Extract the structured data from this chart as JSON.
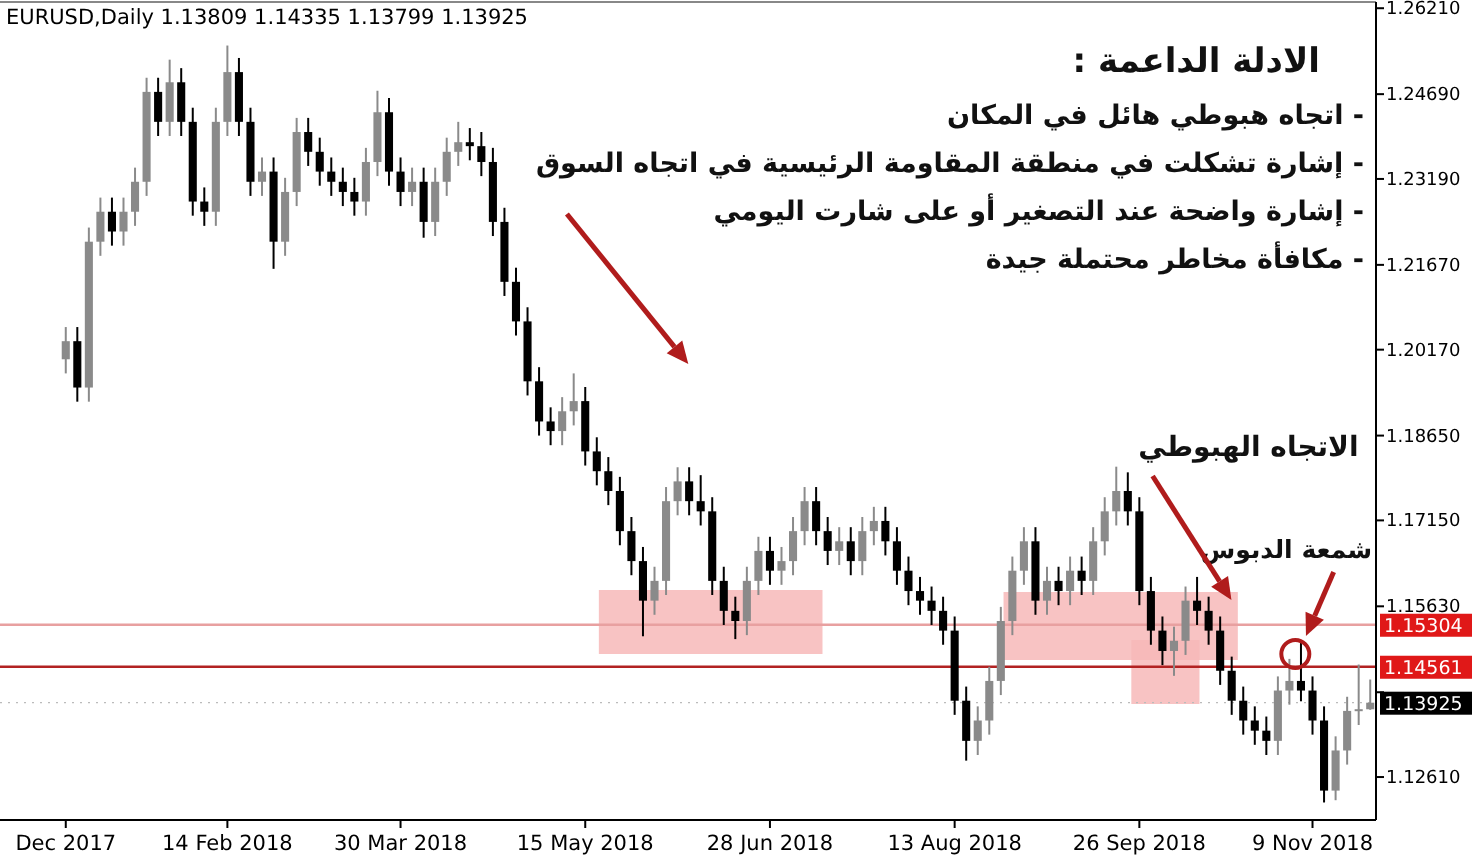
{
  "chart_data": {
    "type": "candlestick",
    "title": "EURUSD,Daily  1.13809 1.14335 1.13799 1.13925",
    "categories": [
      "Dec 2017",
      null,
      null,
      null,
      null,
      null,
      null,
      null,
      null,
      null,
      null,
      null,
      null,
      null,
      "14 Feb 2018",
      null,
      null,
      null,
      null,
      null,
      null,
      null,
      null,
      null,
      null,
      null,
      null,
      null,
      null,
      "30 Mar 2018",
      null,
      null,
      null,
      null,
      null,
      null,
      null,
      null,
      null,
      null,
      null,
      null,
      null,
      null,
      null,
      "15 May 2018",
      null,
      null,
      null,
      null,
      null,
      null,
      null,
      null,
      null,
      null,
      null,
      null,
      null,
      null,
      null,
      "28 Jun 2018",
      null,
      null,
      null,
      null,
      null,
      null,
      null,
      null,
      null,
      null,
      null,
      null,
      null,
      null,
      null,
      "13 Aug 2018",
      null,
      null,
      null,
      null,
      null,
      null,
      null,
      null,
      null,
      null,
      null,
      null,
      null,
      null,
      null,
      "26 Sep 2018",
      null,
      null,
      null,
      null,
      null,
      null,
      null,
      null,
      null,
      null,
      null,
      null,
      null,
      null,
      "9 Nov 2018",
      null,
      null,
      null,
      null,
      null
    ],
    "ohlc": [
      [
        1.2,
        1.2057,
        1.1975,
        1.2032
      ],
      [
        1.2032,
        1.2057,
        1.1925,
        1.195
      ],
      [
        1.195,
        1.2233,
        1.1925,
        1.2208
      ],
      [
        1.2208,
        1.2286,
        1.2183,
        1.2261
      ],
      [
        1.2261,
        1.2286,
        1.2201,
        1.2226
      ],
      [
        1.2226,
        1.2286,
        1.2201,
        1.2261
      ],
      [
        1.2261,
        1.2339,
        1.2236,
        1.2314
      ],
      [
        1.2314,
        1.2498,
        1.2289,
        1.2473
      ],
      [
        1.2473,
        1.2498,
        1.2395,
        1.242
      ],
      [
        1.242,
        1.253,
        1.2395,
        1.249
      ],
      [
        1.249,
        1.2515,
        1.2395,
        1.242
      ],
      [
        1.242,
        1.2445,
        1.2254,
        1.2279
      ],
      [
        1.2279,
        1.2304,
        1.2236,
        1.2261
      ],
      [
        1.2261,
        1.2445,
        1.2236,
        1.242
      ],
      [
        1.242,
        1.2555,
        1.2395,
        1.2508
      ],
      [
        1.2508,
        1.2533,
        1.2395,
        1.242
      ],
      [
        1.242,
        1.2445,
        1.2289,
        1.2314
      ],
      [
        1.2314,
        1.2357,
        1.2289,
        1.2332
      ],
      [
        1.2332,
        1.2357,
        1.216,
        1.2208
      ],
      [
        1.2208,
        1.2321,
        1.2183,
        1.2296
      ],
      [
        1.2296,
        1.2427,
        1.2271,
        1.2402
      ],
      [
        1.2402,
        1.2427,
        1.2342,
        1.2367
      ],
      [
        1.2367,
        1.2392,
        1.2307,
        1.2332
      ],
      [
        1.2332,
        1.2357,
        1.2289,
        1.2314
      ],
      [
        1.2314,
        1.2339,
        1.2271,
        1.2296
      ],
      [
        1.2296,
        1.2321,
        1.2254,
        1.2279
      ],
      [
        1.2279,
        1.2374,
        1.2254,
        1.2349
      ],
      [
        1.2349,
        1.2475,
        1.2324,
        1.2437
      ],
      [
        1.2437,
        1.2462,
        1.2307,
        1.2332
      ],
      [
        1.2332,
        1.2357,
        1.2271,
        1.2296
      ],
      [
        1.2296,
        1.2339,
        1.2271,
        1.2314
      ],
      [
        1.2314,
        1.2339,
        1.2215,
        1.2243
      ],
      [
        1.2243,
        1.2339,
        1.2218,
        1.2314
      ],
      [
        1.2314,
        1.2392,
        1.2289,
        1.2367
      ],
      [
        1.2367,
        1.242,
        1.2342,
        1.2384
      ],
      [
        1.2384,
        1.2409,
        1.2352,
        1.2377
      ],
      [
        1.2377,
        1.2402,
        1.2324,
        1.2349
      ],
      [
        1.2349,
        1.2374,
        1.2218,
        1.2243
      ],
      [
        1.2243,
        1.2268,
        1.2112,
        1.2137
      ],
      [
        1.2137,
        1.2162,
        1.2042,
        1.2067
      ],
      [
        1.2067,
        1.2092,
        1.1936,
        1.1961
      ],
      [
        1.1961,
        1.1986,
        1.1865,
        1.189
      ],
      [
        1.189,
        1.1915,
        1.1848,
        1.1873
      ],
      [
        1.1873,
        1.1933,
        1.1848,
        1.1908
      ],
      [
        1.1908,
        1.1975,
        1.1883,
        1.1926
      ],
      [
        1.1926,
        1.1951,
        1.1812,
        1.1837
      ],
      [
        1.1837,
        1.1862,
        1.1777,
        1.1802
      ],
      [
        1.1802,
        1.1827,
        1.1742,
        1.1767
      ],
      [
        1.1767,
        1.1792,
        1.1671,
        1.1696
      ],
      [
        1.1696,
        1.1721,
        1.1618,
        1.1643
      ],
      [
        1.1643,
        1.1668,
        1.151,
        1.1573
      ],
      [
        1.1573,
        1.1633,
        1.1548,
        1.1608
      ],
      [
        1.1608,
        1.1774,
        1.1583,
        1.1749
      ],
      [
        1.1749,
        1.1809,
        1.1724,
        1.1784
      ],
      [
        1.1784,
        1.1809,
        1.1724,
        1.1749
      ],
      [
        1.1749,
        1.1795,
        1.1706,
        1.1731
      ],
      [
        1.1731,
        1.1756,
        1.1583,
        1.1608
      ],
      [
        1.1608,
        1.1633,
        1.153,
        1.1555
      ],
      [
        1.1555,
        1.158,
        1.1505,
        1.1537
      ],
      [
        1.1537,
        1.1633,
        1.1512,
        1.1608
      ],
      [
        1.1608,
        1.1686,
        1.1583,
        1.1661
      ],
      [
        1.1661,
        1.1686,
        1.1601,
        1.1626
      ],
      [
        1.1626,
        1.1668,
        1.1601,
        1.1643
      ],
      [
        1.1643,
        1.1721,
        1.1618,
        1.1696
      ],
      [
        1.1696,
        1.1774,
        1.1671,
        1.1749
      ],
      [
        1.1749,
        1.1774,
        1.1671,
        1.1696
      ],
      [
        1.1696,
        1.1721,
        1.1636,
        1.1661
      ],
      [
        1.1661,
        1.1703,
        1.1636,
        1.1678
      ],
      [
        1.1678,
        1.1703,
        1.1618,
        1.1643
      ],
      [
        1.1643,
        1.1721,
        1.1618,
        1.1696
      ],
      [
        1.1696,
        1.1739,
        1.1671,
        1.1714
      ],
      [
        1.1714,
        1.1739,
        1.1653,
        1.1678
      ],
      [
        1.1678,
        1.1703,
        1.1601,
        1.1626
      ],
      [
        1.1626,
        1.1651,
        1.1565,
        1.159
      ],
      [
        1.159,
        1.1615,
        1.1548,
        1.1573
      ],
      [
        1.1573,
        1.1598,
        1.153,
        1.1555
      ],
      [
        1.1555,
        1.158,
        1.1495,
        1.152
      ],
      [
        1.152,
        1.1545,
        1.1371,
        1.1396
      ],
      [
        1.1396,
        1.1421,
        1.129,
        1.1325
      ],
      [
        1.1325,
        1.1386,
        1.13,
        1.1361
      ],
      [
        1.1361,
        1.1456,
        1.1336,
        1.1431
      ],
      [
        1.1431,
        1.1562,
        1.1406,
        1.1537
      ],
      [
        1.1537,
        1.1651,
        1.1512,
        1.1626
      ],
      [
        1.1626,
        1.1703,
        1.1601,
        1.1678
      ],
      [
        1.1678,
        1.1703,
        1.1548,
        1.1573
      ],
      [
        1.1573,
        1.1633,
        1.1548,
        1.1608
      ],
      [
        1.1608,
        1.1633,
        1.1565,
        1.159
      ],
      [
        1.159,
        1.1651,
        1.1565,
        1.1626
      ],
      [
        1.1626,
        1.1651,
        1.1583,
        1.1608
      ],
      [
        1.1608,
        1.1703,
        1.1583,
        1.1678
      ],
      [
        1.1678,
        1.1756,
        1.1653,
        1.1731
      ],
      [
        1.1731,
        1.181,
        1.1706,
        1.1767
      ],
      [
        1.1767,
        1.18,
        1.1706,
        1.1731
      ],
      [
        1.1731,
        1.1756,
        1.1565,
        1.159
      ],
      [
        1.159,
        1.1615,
        1.1495,
        1.152
      ],
      [
        1.152,
        1.1545,
        1.1459,
        1.1484
      ],
      [
        1.1484,
        1.1527,
        1.144,
        1.1502
      ],
      [
        1.1502,
        1.1598,
        1.1477,
        1.1573
      ],
      [
        1.1573,
        1.1615,
        1.153,
        1.1555
      ],
      [
        1.1555,
        1.158,
        1.1495,
        1.152
      ],
      [
        1.152,
        1.1545,
        1.1424,
        1.1449
      ],
      [
        1.1449,
        1.1474,
        1.1371,
        1.1396
      ],
      [
        1.1396,
        1.1421,
        1.1336,
        1.1361
      ],
      [
        1.1361,
        1.1386,
        1.1318,
        1.1343
      ],
      [
        1.1343,
        1.1368,
        1.13,
        1.1325
      ],
      [
        1.1325,
        1.1439,
        1.13,
        1.1414
      ],
      [
        1.1414,
        1.147,
        1.1389,
        1.1431
      ],
      [
        1.1431,
        1.15,
        1.1395,
        1.1414
      ],
      [
        1.1414,
        1.1439,
        1.1336,
        1.1361
      ],
      [
        1.1361,
        1.1386,
        1.1216,
        1.1237
      ],
      [
        1.1237,
        1.1333,
        1.122,
        1.1308
      ],
      [
        1.1308,
        1.1403,
        1.1283,
        1.1378
      ],
      [
        1.1378,
        1.146,
        1.1353,
        1.1381
      ],
      [
        1.13809,
        1.14335,
        1.13799,
        1.13925
      ]
    ],
    "ylim": [
      1.1185,
      1.2632
    ],
    "yticks": [
      {
        "value": 1.2621,
        "label": "1.26210"
      },
      {
        "value": 1.2469,
        "label": "1.24690"
      },
      {
        "value": 1.2319,
        "label": "1.23190"
      },
      {
        "value": 1.2167,
        "label": "1.21670"
      },
      {
        "value": 1.2017,
        "label": "1.20170"
      },
      {
        "value": 1.1865,
        "label": "1.18650"
      },
      {
        "value": 1.1715,
        "label": "1.17150"
      },
      {
        "value": 1.1563,
        "label": "1.15630"
      },
      {
        "value": 1.1411,
        "label": null
      },
      {
        "value": 1.1261,
        "label": "1.12610"
      }
    ],
    "ref_lines": [
      {
        "axis": "y",
        "value": 1.15304,
        "label": "1.15304",
        "color": "#e8a0a0"
      },
      {
        "axis": "y",
        "value": 1.14561,
        "label": "1.14561",
        "color": "#b22222"
      },
      {
        "axis": "y",
        "value": 1.13925,
        "label": "1.13925",
        "color": "#bbbbbb",
        "line_style": "dotted"
      }
    ],
    "annotations": [
      "الادلة الداعمة :",
      "- اتجاه هبوطي هائل في المكان",
      "- إشارة تشكلت في منطقة المقاومة الرئيسية في اتجاه السوق",
      "- إشارة واضحة عند التصغير أو على شارت اليومي",
      "- مكافأة مخاطر محتملة جيدة",
      "الاتجاه الهبوطي",
      "شمعة الدبوس"
    ]
  }
}
